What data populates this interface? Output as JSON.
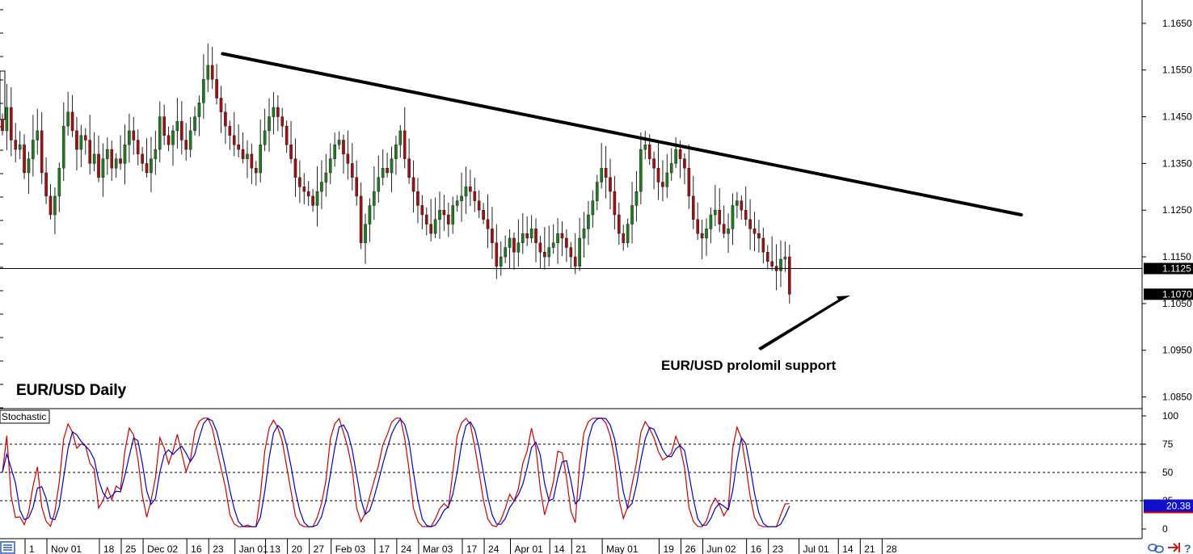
{
  "chart_data": [
    {
      "type": "candlestick",
      "title": "EUR/USD Daily",
      "annotation": "EUR/USD prolomil support",
      "y_ticks": [
        "1.1650",
        "1.1550",
        "1.1450",
        "1.1350",
        "1.1250",
        "1.1150",
        "1.1050",
        "1.0950",
        "1.0850"
      ],
      "ylim": [
        1.0825,
        1.17
      ],
      "support_level": 1.1125,
      "support_label": "1.1125",
      "last_price": 1.107,
      "last_price_label": "1.1070",
      "trendline": [
        [
          1,
          1.1585
        ],
        [
          233,
          1.124
        ]
      ],
      "x_ticks": [
        {
          "label": "1",
          "i": 0
        },
        {
          "label": "Nov 01",
          "i": 5
        },
        {
          "label": "18",
          "i": 17
        },
        {
          "label": "25",
          "i": 22
        },
        {
          "label": "Dec 02",
          "i": 27
        },
        {
          "label": "16",
          "i": 37
        },
        {
          "label": "23",
          "i": 42
        },
        {
          "label": "Jan 01",
          "i": 48
        },
        {
          "label": "13",
          "i": 55
        },
        {
          "label": "20",
          "i": 60
        },
        {
          "label": "27",
          "i": 65
        },
        {
          "label": "Feb 03",
          "i": 70
        },
        {
          "label": "17",
          "i": 80
        },
        {
          "label": "24",
          "i": 85
        },
        {
          "label": "Mar 03",
          "i": 90
        },
        {
          "label": "17",
          "i": 100
        },
        {
          "label": "24",
          "i": 105
        },
        {
          "label": "Apr 01",
          "i": 111
        },
        {
          "label": "14",
          "i": 120
        },
        {
          "label": "21",
          "i": 125
        },
        {
          "label": "May 01",
          "i": 132
        },
        {
          "label": "19",
          "i": 145
        },
        {
          "label": "26",
          "i": 150
        },
        {
          "label": "Jun 02",
          "i": 155
        },
        {
          "label": "16",
          "i": 165
        },
        {
          "label": "23",
          "i": 170
        },
        {
          "label": "Jul 01",
          "i": 177
        },
        {
          "label": "14",
          "i": 186
        },
        {
          "label": "21",
          "i": 191
        },
        {
          "label": "28",
          "i": 196
        }
      ],
      "closes": [
        1.142,
        1.147,
        1.14,
        1.138,
        1.139,
        1.133,
        1.136,
        1.14,
        1.142,
        1.133,
        1.128,
        1.124,
        1.128,
        1.134,
        1.143,
        1.146,
        1.142,
        1.138,
        1.141,
        1.14,
        1.135,
        1.137,
        1.132,
        1.136,
        1.138,
        1.134,
        1.136,
        1.135,
        1.139,
        1.142,
        1.14,
        1.137,
        1.135,
        1.133,
        1.136,
        1.138,
        1.145,
        1.141,
        1.139,
        1.142,
        1.144,
        1.14,
        1.138,
        1.142,
        1.145,
        1.148,
        1.153,
        1.156,
        1.153,
        1.149,
        1.146,
        1.143,
        1.141,
        1.139,
        1.138,
        1.136,
        1.137,
        1.134,
        1.133,
        1.139,
        1.142,
        1.145,
        1.147,
        1.145,
        1.143,
        1.139,
        1.136,
        1.132,
        1.13,
        1.129,
        1.128,
        1.126,
        1.129,
        1.131,
        1.133,
        1.136,
        1.139,
        1.14,
        1.137,
        1.135,
        1.132,
        1.128,
        1.118,
        1.122,
        1.126,
        1.129,
        1.132,
        1.134,
        1.133,
        1.136,
        1.139,
        1.142,
        1.136,
        1.132,
        1.129,
        1.126,
        1.124,
        1.122,
        1.12,
        1.123,
        1.125,
        1.124,
        1.122,
        1.126,
        1.127,
        1.128,
        1.13,
        1.129,
        1.127,
        1.125,
        1.123,
        1.121,
        1.118,
        1.113,
        1.115,
        1.117,
        1.119,
        1.116,
        1.118,
        1.12,
        1.119,
        1.121,
        1.118,
        1.116,
        1.115,
        1.117,
        1.118,
        1.12,
        1.119,
        1.117,
        1.115,
        1.113,
        1.119,
        1.121,
        1.124,
        1.127,
        1.131,
        1.134,
        1.132,
        1.129,
        1.124,
        1.12,
        1.118,
        1.122,
        1.126,
        1.129,
        1.138,
        1.139,
        1.136,
        1.134,
        1.131,
        1.13,
        1.133,
        1.135,
        1.138,
        1.136,
        1.134,
        1.128,
        1.123,
        1.12,
        1.119,
        1.121,
        1.124,
        1.125,
        1.122,
        1.12,
        1.121,
        1.126,
        1.127,
        1.125,
        1.123,
        1.121,
        1.12,
        1.119,
        1.116,
        1.114,
        1.113,
        1.112,
        1.1145,
        1.115,
        1.107
      ],
      "indicator": {
        "name": "Stochastic",
        "ylim": [
          0,
          100
        ],
        "y_ticks": [
          "100",
          "75",
          "50",
          "25",
          "0"
        ],
        "levels": [
          75,
          50,
          25
        ],
        "current": 20.38,
        "current_label": "20.38",
        "colors": {
          "k": "#cc0000",
          "d": "#0000cc"
        }
      }
    }
  ],
  "colors": {
    "bull": "#1e7b1e",
    "bear": "#a01010",
    "wick": "#222222",
    "trendline": "#000000",
    "label_bg": "#000000",
    "stoch_label_bg": "#1010cc"
  },
  "toolbar": {
    "icons": [
      "menu-icon",
      "link-icon",
      "arrow-icon",
      "help-icon"
    ],
    "help_glyph": "?"
  }
}
